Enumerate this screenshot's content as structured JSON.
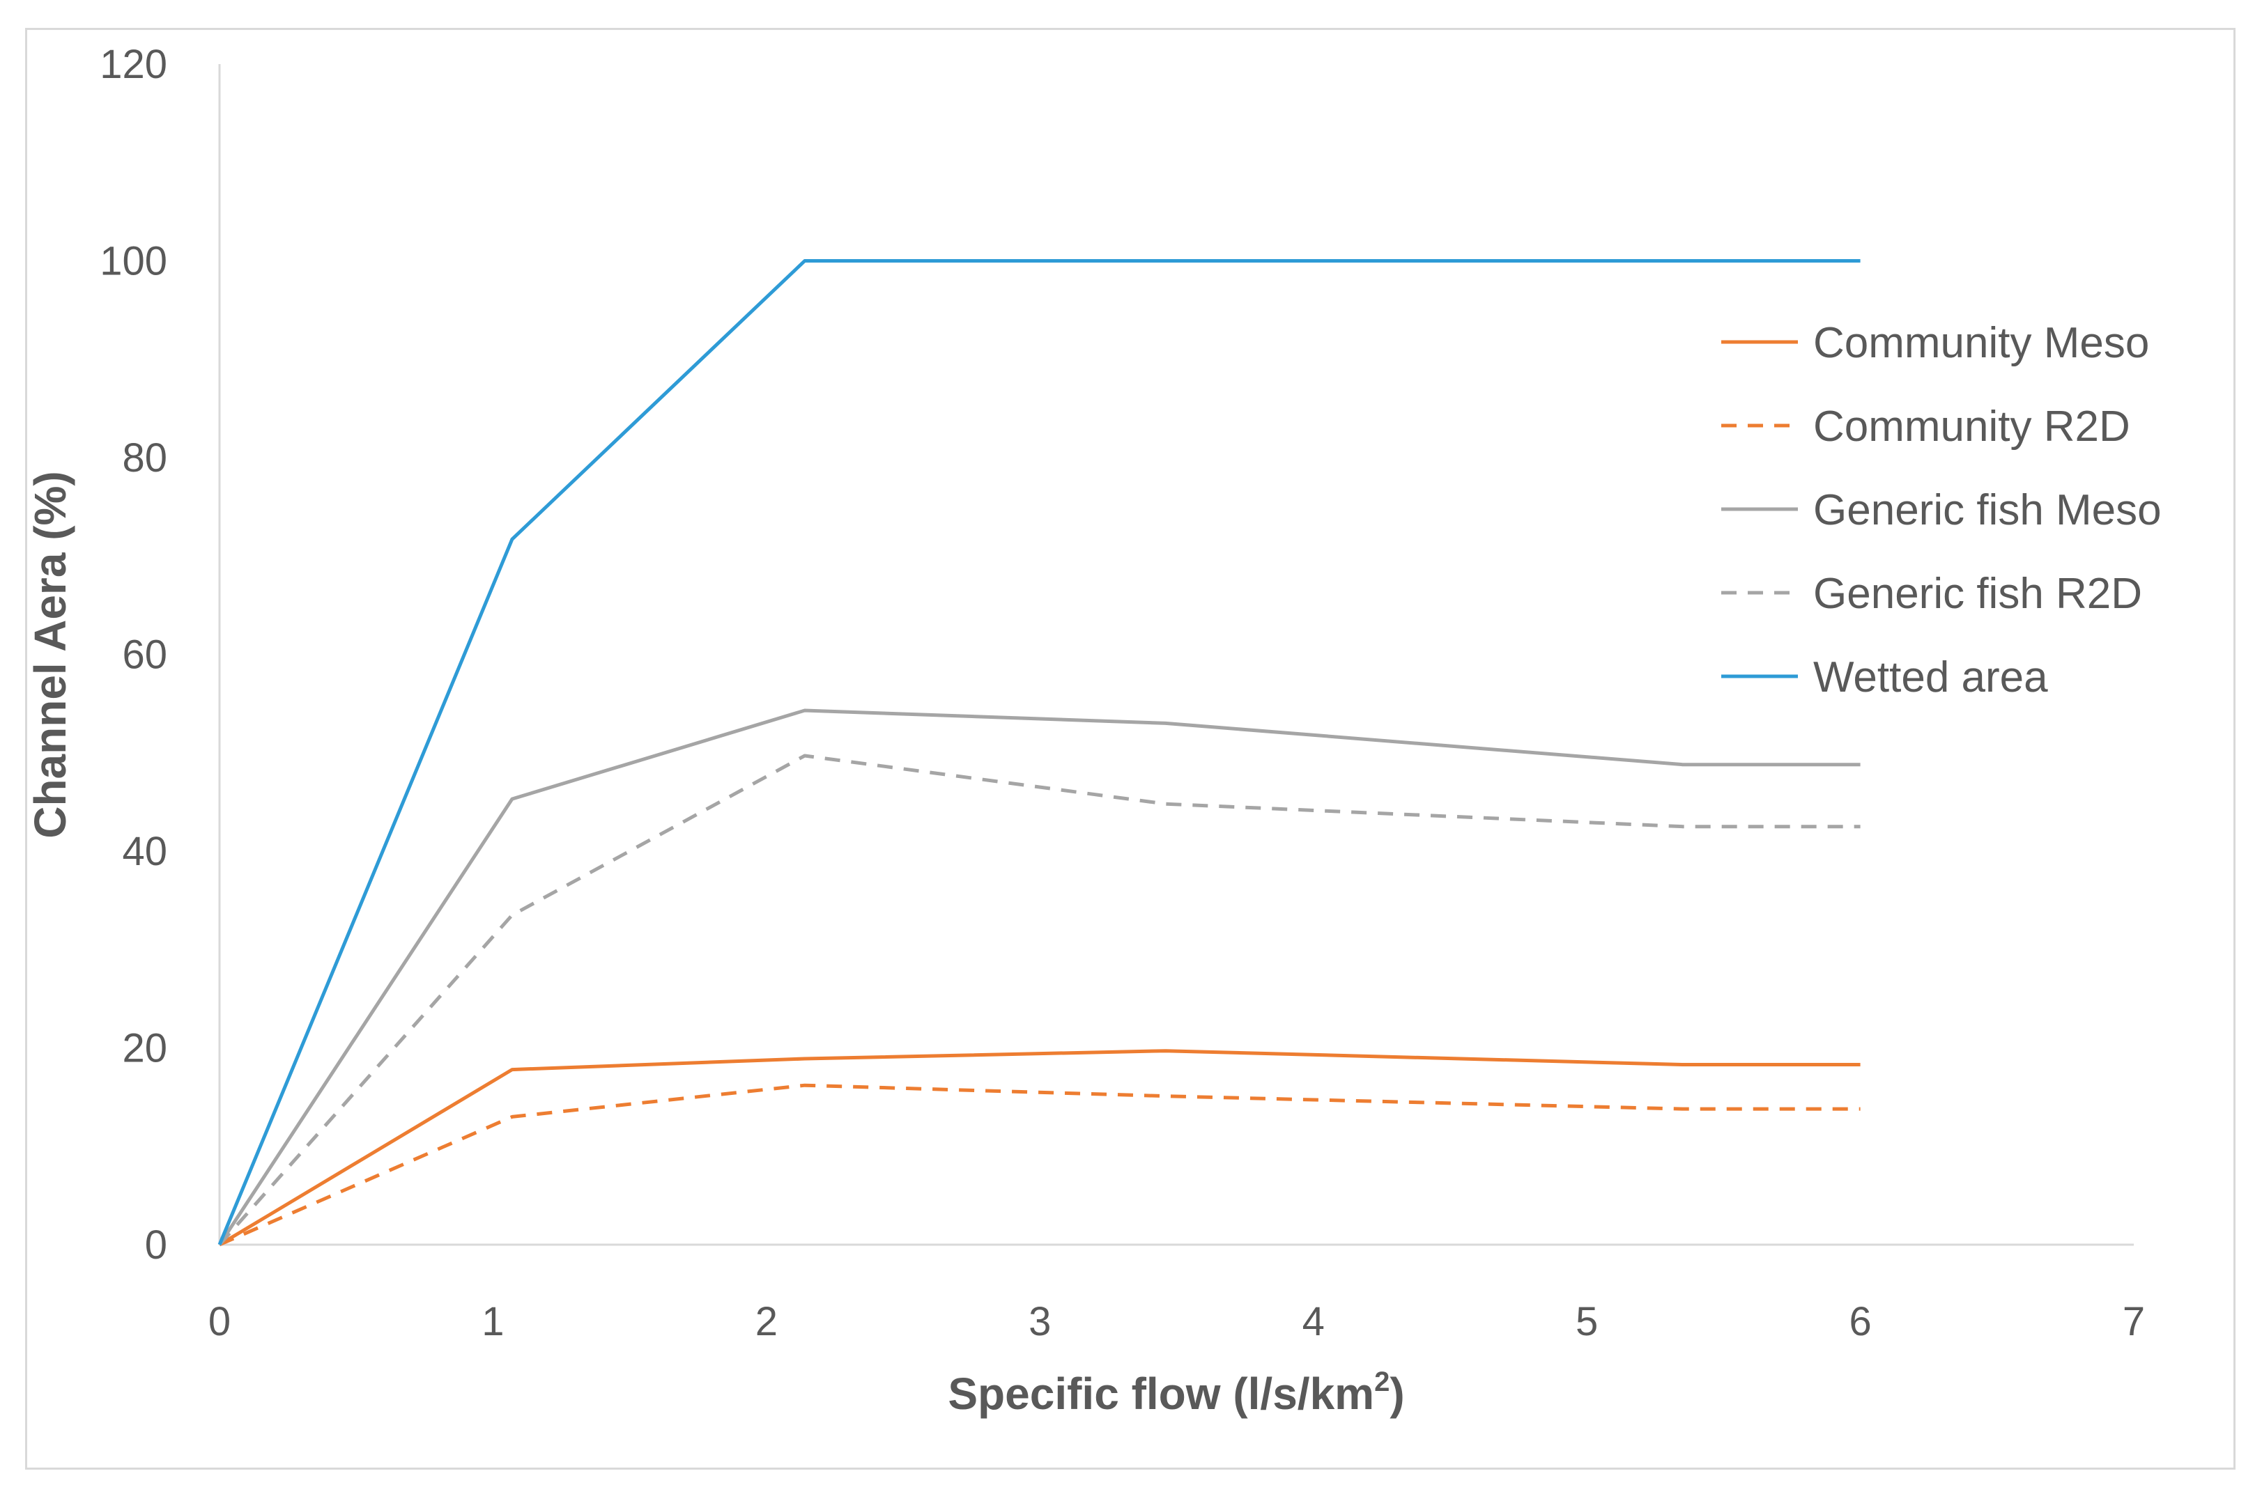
{
  "chart_data": {
    "type": "line",
    "xlabel": "Specific flow (l/s/km",
    "xlabel_sup": "2",
    "xlabel_suffix": ")",
    "ylabel": "Channel Aera (%)",
    "xlim": [
      0,
      7
    ],
    "ylim": [
      0,
      120
    ],
    "x_ticks": [
      "0",
      "1",
      "2",
      "3",
      "4",
      "5",
      "6",
      "7"
    ],
    "y_ticks": [
      "0",
      "20",
      "40",
      "60",
      "80",
      "100",
      "120"
    ],
    "grid": false,
    "legend_position": "right",
    "series": [
      {
        "name": "Community Meso",
        "color": "#ED7D31",
        "dash": "solid",
        "x": [
          0,
          1.07,
          2.14,
          3.46,
          5.35,
          6
        ],
        "y": [
          0,
          17.8,
          18.9,
          19.7,
          18.3,
          18.3
        ]
      },
      {
        "name": "Community  R2D",
        "color": "#ED7D31",
        "dash": "dashed",
        "x": [
          0,
          1.07,
          2.14,
          3.46,
          5.35,
          6
        ],
        "y": [
          0,
          13.0,
          16.2,
          15.1,
          13.8,
          13.8
        ]
      },
      {
        "name": "Generic fish Meso",
        "color": "#A5A5A5",
        "dash": "solid",
        "x": [
          0,
          1.07,
          2.14,
          3.46,
          5.35,
          6
        ],
        "y": [
          0,
          45.3,
          54.3,
          53.0,
          48.8,
          48.8
        ]
      },
      {
        "name": "Generic fish R2D",
        "color": "#A5A5A5",
        "dash": "dashed",
        "x": [
          0,
          1.07,
          2.14,
          3.46,
          5.35,
          6
        ],
        "y": [
          0,
          33.5,
          49.7,
          44.8,
          42.5,
          42.5
        ]
      },
      {
        "name": "Wetted area",
        "color": "#2E9BD6",
        "dash": "solid",
        "x": [
          0,
          1.07,
          2.14,
          3.46,
          5.35,
          6
        ],
        "y": [
          0,
          71.7,
          100,
          100,
          100,
          100
        ]
      }
    ]
  }
}
